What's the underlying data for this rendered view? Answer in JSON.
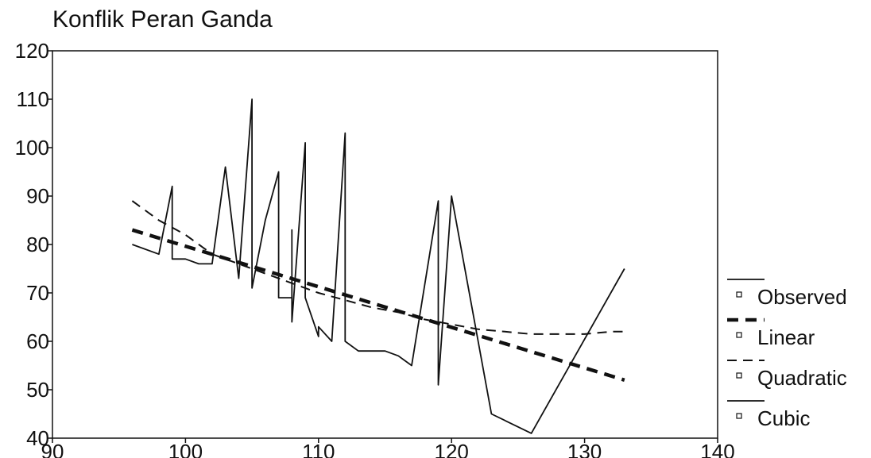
{
  "chart_data": {
    "type": "line",
    "title": "Konflik Peran Ganda",
    "xlabel": "",
    "ylabel": "",
    "xlim": [
      90,
      140
    ],
    "ylim": [
      40,
      120
    ],
    "x_ticks": [
      90,
      100,
      110,
      120,
      130,
      140
    ],
    "y_ticks": [
      40,
      50,
      60,
      70,
      80,
      90,
      100,
      110,
      120
    ],
    "grid": false,
    "legend_position": "right",
    "series": [
      {
        "name": "Observed",
        "style": "solid-thin",
        "color": "#111111",
        "points": [
          [
            96,
            80
          ],
          [
            98,
            78
          ],
          [
            99,
            92
          ],
          [
            99,
            77
          ],
          [
            100,
            77
          ],
          [
            101,
            76
          ],
          [
            102,
            76
          ],
          [
            103,
            96
          ],
          [
            104,
            73
          ],
          [
            105,
            110
          ],
          [
            105,
            71
          ],
          [
            106,
            85
          ],
          [
            107,
            95
          ],
          [
            107,
            69
          ],
          [
            108,
            69
          ],
          [
            108,
            83
          ],
          [
            108,
            64
          ],
          [
            109,
            101
          ],
          [
            109,
            69
          ],
          [
            110,
            61
          ],
          [
            110,
            63
          ],
          [
            111,
            60
          ],
          [
            112,
            103
          ],
          [
            112,
            60
          ],
          [
            113,
            58
          ],
          [
            115,
            58
          ],
          [
            116,
            57
          ],
          [
            117,
            55
          ],
          [
            119,
            89
          ],
          [
            119,
            51
          ],
          [
            120,
            90
          ],
          [
            123,
            45
          ],
          [
            126,
            41
          ],
          [
            133,
            75
          ]
        ]
      },
      {
        "name": "Linear",
        "style": "dashed-thick",
        "color": "#111111",
        "points": [
          [
            96,
            83
          ],
          [
            133,
            52
          ]
        ]
      },
      {
        "name": "Quadratic",
        "style": "dashed-thin",
        "color": "#111111",
        "points": [
          [
            96,
            89
          ],
          [
            98,
            85
          ],
          [
            100,
            82
          ],
          [
            102,
            78
          ],
          [
            104,
            76
          ],
          [
            106,
            74
          ],
          [
            108,
            72
          ],
          [
            110,
            70
          ],
          [
            112,
            68.5
          ],
          [
            114,
            67
          ],
          [
            116,
            66
          ],
          [
            118,
            64.5
          ],
          [
            120,
            63.5
          ],
          [
            122,
            62.5
          ],
          [
            124,
            62
          ],
          [
            126,
            61.5
          ],
          [
            128,
            61.5
          ],
          [
            130,
            61.5
          ],
          [
            132,
            62
          ],
          [
            133,
            62
          ]
        ]
      },
      {
        "name": "Cubic",
        "style": "solid-thin",
        "color": "#111111",
        "points": []
      }
    ]
  }
}
